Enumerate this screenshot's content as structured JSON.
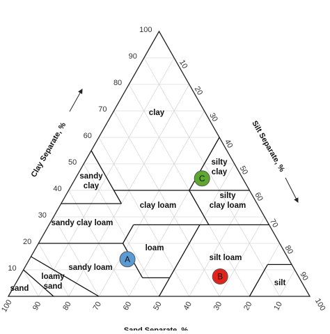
{
  "diagram": {
    "axes": {
      "clay": {
        "title": "Clay Separate, %",
        "ticks": [
          10,
          20,
          30,
          40,
          50,
          60,
          70,
          80,
          90,
          100
        ]
      },
      "silt": {
        "title": "Silt Separate, %",
        "ticks": [
          10,
          20,
          30,
          40,
          50,
          60,
          70,
          80,
          90,
          100
        ]
      },
      "sand": {
        "title": "Sand Separate, %",
        "ticks": [
          100,
          90,
          80,
          70,
          60,
          50,
          40,
          30,
          20,
          10
        ]
      }
    },
    "regions": [
      "clay",
      "sandy clay",
      "silty clay",
      "clay loam",
      "silty clay loam",
      "sandy clay loam",
      "loam",
      "silt loam",
      "sandy loam",
      "loamy sand",
      "sand",
      "silt"
    ],
    "points": [
      {
        "label": "A",
        "clay": 14,
        "silt": 32.5,
        "color": "#5b9bd5"
      },
      {
        "label": "B",
        "clay": 7.5,
        "silt": 66.5,
        "color": "#e2231a"
      },
      {
        "label": "C",
        "clay": 44.5,
        "silt": 42,
        "color": "#5ea832"
      }
    ]
  }
}
